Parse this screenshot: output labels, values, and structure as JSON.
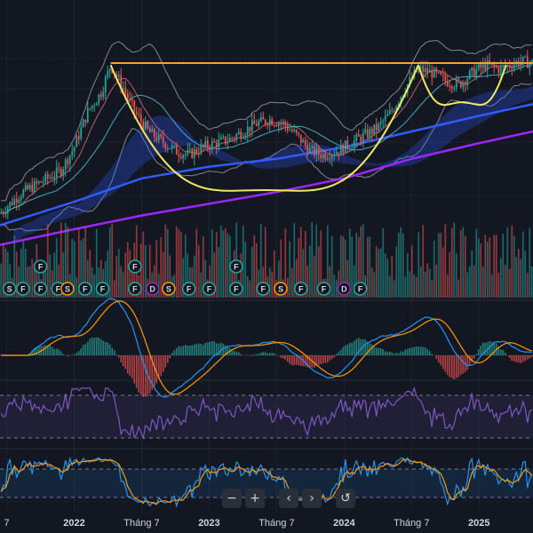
{
  "colors": {
    "background": "#131722",
    "price_up": "#26a69a",
    "price_down": "#ef5350",
    "resistance": "#f5a623",
    "cup_pattern": "#f2e85c",
    "ma_blue": "#2f5bff",
    "ma_purple": "#9c27ff",
    "macd_line": "#2196f3",
    "signal_line": "#ff9800",
    "rsi_line": "#7e57c2",
    "stoch_k": "#2196f3",
    "stoch_d": "#ff9800"
  },
  "toolbar": {
    "zoom_out": "−",
    "zoom_in": "+",
    "scroll_left": "‹",
    "scroll_right": "›",
    "reset": "↺"
  },
  "chart_data": {
    "type": "candlestick",
    "x_axis": {
      "ticks": [
        {
          "label": "7",
          "bold": false
        },
        {
          "label": "2022",
          "bold": true
        },
        {
          "label": "Tháng 7",
          "bold": false
        },
        {
          "label": "2023",
          "bold": true
        },
        {
          "label": "Tháng 7",
          "bold": false
        },
        {
          "label": "2024",
          "bold": true
        },
        {
          "label": "Tháng 7",
          "bold": false
        },
        {
          "label": "2025",
          "bold": true
        }
      ]
    },
    "tick_dates": [
      2021.5,
      2022.0,
      2022.5,
      2023.0,
      2023.5,
      2024.0,
      2024.5,
      2025.0
    ],
    "x_range": [
      2021.45,
      2025.4
    ],
    "price_ylim": [
      0,
      100
    ],
    "price_path": [
      [
        2021.45,
        18
      ],
      [
        2021.6,
        28
      ],
      [
        2021.75,
        34
      ],
      [
        2021.9,
        40
      ],
      [
        2022.0,
        52
      ],
      [
        2022.1,
        70
      ],
      [
        2022.2,
        80
      ],
      [
        2022.27,
        94
      ],
      [
        2022.35,
        84
      ],
      [
        2022.45,
        70
      ],
      [
        2022.55,
        60
      ],
      [
        2022.65,
        55
      ],
      [
        2022.75,
        50
      ],
      [
        2022.85,
        48
      ],
      [
        2022.95,
        52
      ],
      [
        2023.05,
        54
      ],
      [
        2023.15,
        56
      ],
      [
        2023.25,
        60
      ],
      [
        2023.35,
        64
      ],
      [
        2023.45,
        66
      ],
      [
        2023.55,
        64
      ],
      [
        2023.65,
        58
      ],
      [
        2023.75,
        50
      ],
      [
        2023.85,
        48
      ],
      [
        2023.95,
        50
      ],
      [
        2024.05,
        54
      ],
      [
        2024.15,
        58
      ],
      [
        2024.25,
        62
      ],
      [
        2024.35,
        70
      ],
      [
        2024.45,
        82
      ],
      [
        2024.55,
        92
      ],
      [
        2024.65,
        90
      ],
      [
        2024.75,
        86
      ],
      [
        2024.85,
        84
      ],
      [
        2024.95,
        90
      ],
      [
        2025.05,
        94
      ],
      [
        2025.15,
        92
      ],
      [
        2025.3,
        96
      ],
      [
        2025.4,
        95
      ]
    ],
    "resistance_level": 95,
    "cup_1": {
      "x": [
        2022.27,
        2024.55
      ],
      "top": 94,
      "bottom": 30
    },
    "cup_2": {
      "x": [
        2024.55,
        2025.2
      ],
      "top": 94,
      "bottom": 75
    },
    "ma_blue": [
      [
        2021.45,
        12
      ],
      [
        2022.0,
        24
      ],
      [
        2022.5,
        36
      ],
      [
        2023.0,
        42
      ],
      [
        2023.5,
        46
      ],
      [
        2024.0,
        52
      ],
      [
        2024.5,
        60
      ],
      [
        2025.0,
        68
      ],
      [
        2025.4,
        74
      ]
    ],
    "ma_purple": [
      [
        2021.45,
        2
      ],
      [
        2022.0,
        10
      ],
      [
        2022.5,
        17
      ],
      [
        2023.0,
        23
      ],
      [
        2023.5,
        29
      ],
      [
        2024.0,
        36
      ],
      [
        2024.5,
        46
      ],
      [
        2025.0,
        54
      ],
      [
        2025.4,
        60
      ]
    ],
    "volume_ylim": [
      0,
      100
    ],
    "event_markers": [
      {
        "x": 2021.52,
        "letter": "S",
        "color": "#26a69a",
        "row": 0
      },
      {
        "x": 2021.62,
        "letter": "F",
        "color": "#26a69a",
        "row": 0
      },
      {
        "x": 2021.75,
        "letter": "F",
        "color": "#26a69a",
        "row": 0
      },
      {
        "x": 2021.75,
        "letter": "F",
        "color": "#26a69a",
        "row": 1
      },
      {
        "x": 2021.88,
        "letter": "F",
        "color": "#26a69a",
        "row": 0
      },
      {
        "x": 2021.95,
        "letter": "S",
        "color": "#ff9800",
        "row": 0
      },
      {
        "x": 2022.08,
        "letter": "F",
        "color": "#26a69a",
        "row": 0
      },
      {
        "x": 2022.21,
        "letter": "F",
        "color": "#26a69a",
        "row": 0
      },
      {
        "x": 2022.45,
        "letter": "F",
        "color": "#26a69a",
        "row": 0
      },
      {
        "x": 2022.45,
        "letter": "F",
        "color": "#26a69a",
        "row": 1
      },
      {
        "x": 2022.58,
        "letter": "D",
        "color": "#9c27b0",
        "row": 0
      },
      {
        "x": 2022.7,
        "letter": "S",
        "color": "#ff9800",
        "row": 0
      },
      {
        "x": 2022.85,
        "letter": "F",
        "color": "#26a69a",
        "row": 0
      },
      {
        "x": 2023.0,
        "letter": "F",
        "color": "#26a69a",
        "row": 0
      },
      {
        "x": 2023.2,
        "letter": "F",
        "color": "#26a69a",
        "row": 0
      },
      {
        "x": 2023.2,
        "letter": "F",
        "color": "#26a69a",
        "row": 1
      },
      {
        "x": 2023.4,
        "letter": "F",
        "color": "#26a69a",
        "row": 0
      },
      {
        "x": 2023.53,
        "letter": "S",
        "color": "#ff9800",
        "row": 0
      },
      {
        "x": 2023.68,
        "letter": "F",
        "color": "#26a69a",
        "row": 0
      },
      {
        "x": 2023.85,
        "letter": "F",
        "color": "#26a69a",
        "row": 0
      },
      {
        "x": 2024.0,
        "letter": "D",
        "color": "#9c27b0",
        "row": 0
      },
      {
        "x": 2024.12,
        "letter": "F",
        "color": "#26a69a",
        "row": 0
      }
    ]
  }
}
